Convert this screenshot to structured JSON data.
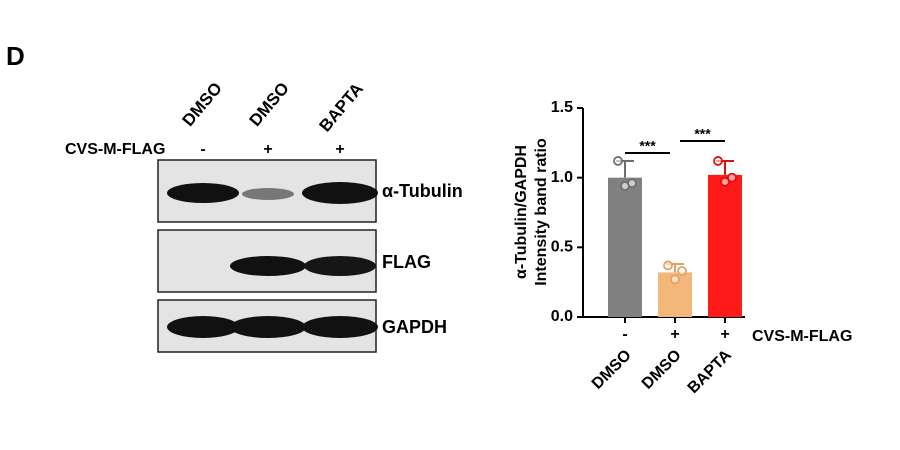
{
  "panel_label": "D",
  "blot": {
    "lanes": [
      "DMSO",
      "DMSO",
      "BAPTA"
    ],
    "row_label": "CVS-M-FLAG",
    "signs": [
      "-",
      "+",
      "+"
    ],
    "bands": [
      "α-Tubulin",
      "FLAG",
      "GAPDH"
    ]
  },
  "chart_data": {
    "type": "bar",
    "ylabel": [
      "α-Tubulin/GAPDH",
      "Intensity band ratio"
    ],
    "categories": [
      "DMSO",
      "DMSO",
      "BAPTA"
    ],
    "signs": [
      "-",
      "+",
      "+"
    ],
    "sign_label": "CVS-M-FLAG",
    "values": [
      1.0,
      0.32,
      1.02
    ],
    "errors": [
      0.12,
      0.06,
      0.1
    ],
    "points": [
      [
        1.12,
        0.94,
        0.96
      ],
      [
        0.37,
        0.27,
        0.33
      ],
      [
        1.12,
        0.97,
        1.0
      ]
    ],
    "colors": [
      "#808080",
      "#f4b77a",
      "#ff1a1a"
    ],
    "point_colors": [
      "#6e6e6e",
      "#e8a060",
      "#e01010"
    ],
    "ylim": [
      0,
      1.5
    ],
    "yticks": [
      {
        "value": 0,
        "label": "0.0"
      },
      {
        "value": 0.5,
        "label": "0.5"
      },
      {
        "value": 1,
        "label": "1.0"
      },
      {
        "value": 1.5,
        "label": "1.5"
      }
    ],
    "significance": [
      {
        "from": 0,
        "to": 1,
        "label": "***"
      },
      {
        "from": 1,
        "to": 2,
        "label": "***"
      }
    ]
  }
}
